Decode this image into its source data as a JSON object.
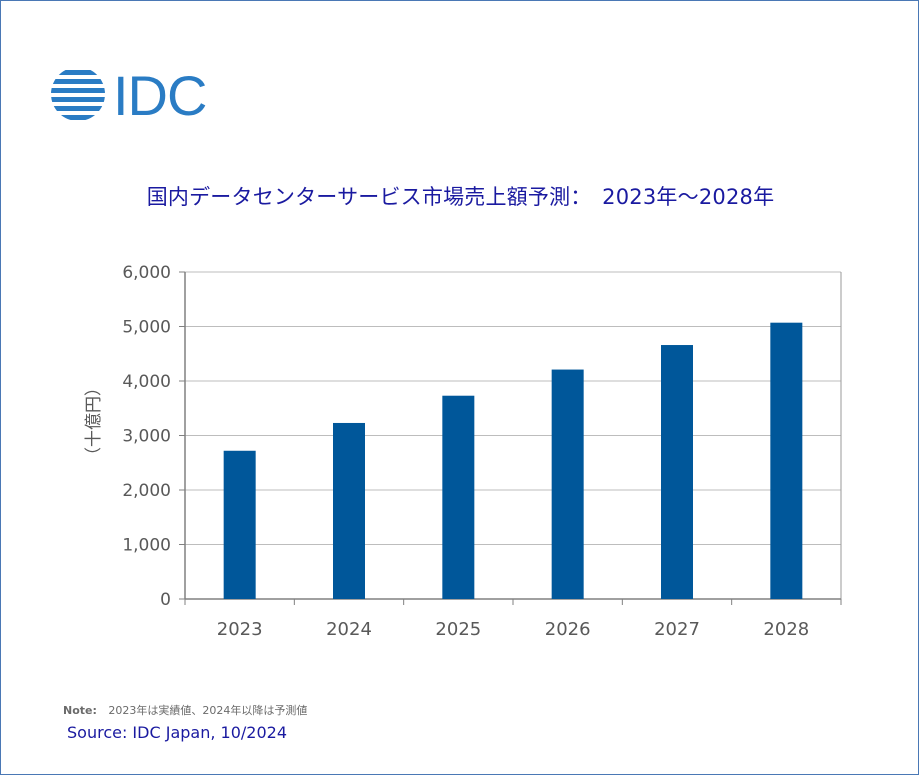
{
  "logo": {
    "text": "IDC",
    "color": "#2a7cc4"
  },
  "title": "国内データセンターサービス市場売上額予測：　2023年～2028年",
  "chart_data": {
    "type": "bar",
    "categories": [
      "2023",
      "2024",
      "2025",
      "2026",
      "2027",
      "2028"
    ],
    "values": [
      2720,
      3230,
      3730,
      4210,
      4660,
      5070
    ],
    "ylabel": "（十億円）",
    "ylim": [
      0,
      6000
    ],
    "yticks": [
      0,
      1000,
      2000,
      3000,
      4000,
      5000,
      6000
    ],
    "ytick_labels": [
      "0",
      "1,000",
      "2,000",
      "3,000",
      "4,000",
      "5,000",
      "6,000"
    ],
    "grid": true,
    "bar_color": "#00579a"
  },
  "note": {
    "label": "Note:",
    "text": "2023年は実績値、2024年以降は予測値"
  },
  "source": "Source: IDC Japan, 10/2024"
}
